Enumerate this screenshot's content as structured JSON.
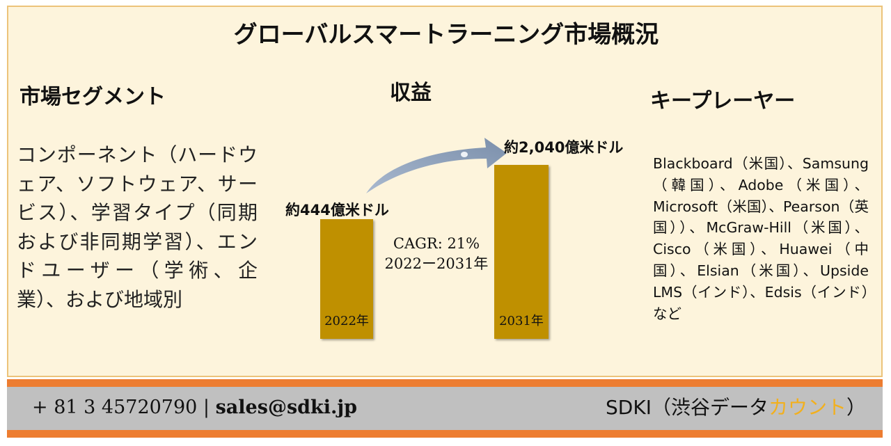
{
  "title": "グローバルスマートラーニング市場概況",
  "segments": {
    "heading": "市場セグメント",
    "text": "コンポーネント（ハードウェア、ソフトウェア、サービス）、学習タイプ（同期および非同期学習）、エンドユーザー（学術、企業）、および地域別"
  },
  "revenue": {
    "heading": "収益",
    "cagr": "CAGR: 21%",
    "period": "2022ー2031年"
  },
  "chart_data": {
    "type": "bar",
    "categories": [
      "2022年",
      "2031年"
    ],
    "values": [
      444,
      2040
    ],
    "value_labels": [
      "約444億米ドル",
      "約2,040億米ドル"
    ]
  },
  "key_players": {
    "heading": "キープレーヤー",
    "text": "Blackboard（米国）、Samsung（韓国）、Adobe（米国）、Microsoft（米国）、Pearson（英国））、McGraw-Hill（米国）、Cisco（米国）、Huawei（中国）、Elsian（米国）、Upside LMS（インド）、Edsis（インド）など"
  },
  "footer": {
    "phone": "+ 81 3 45720790",
    "separator": " | ",
    "email": "sales@sdki.jp",
    "brand_prefix": "SDKI（渋谷データ",
    "brand_accent": "カウント",
    "brand_suffix": "）"
  },
  "colors": {
    "bar": "#bf9000",
    "accent": "#ed7d31",
    "arrow": "#8497b0",
    "brand_accent": "#f2b01e"
  }
}
